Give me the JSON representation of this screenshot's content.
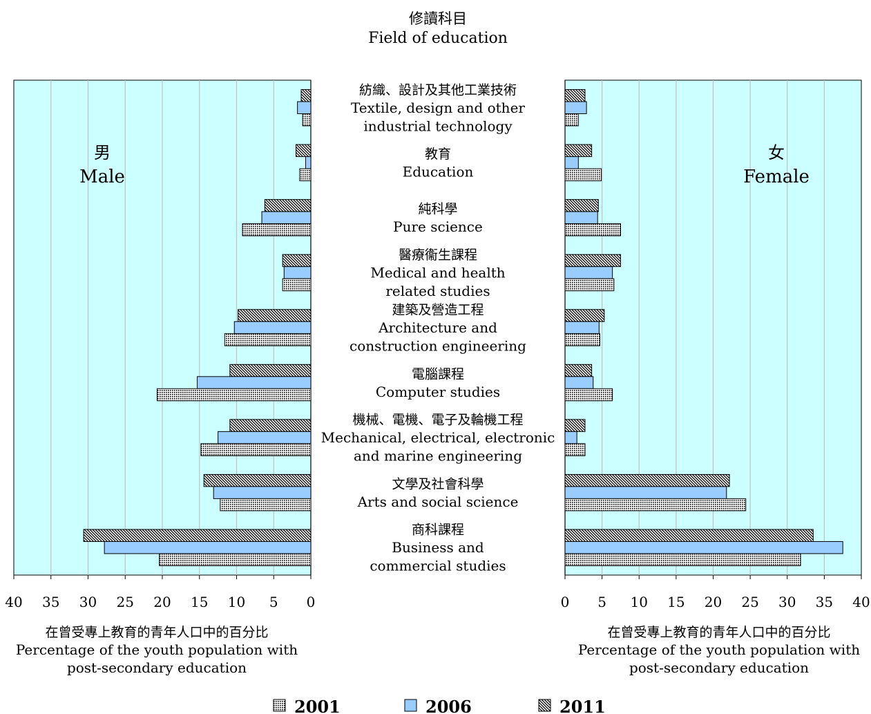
{
  "title": {
    "zh": "修讀科目",
    "en": "Field of education"
  },
  "panels": {
    "male": {
      "zh": "男",
      "en": "Male"
    },
    "female": {
      "zh": "女",
      "en": "Female"
    }
  },
  "axis": {
    "xlabel_zh": "在曾受專上教育的青年人口中的百分比",
    "xlabel_en_line1": "Percentage of the youth population with",
    "xlabel_en_line2": "post-secondary education",
    "ticks": [
      "0",
      "5",
      "10",
      "15",
      "20",
      "25",
      "30",
      "35",
      "40"
    ]
  },
  "colors": {
    "plot_bg": "#ccffff",
    "bar_2006": "#99ccff",
    "gridline": "#c0c0c0"
  },
  "chart_data": {
    "type": "bar",
    "orientation": "horizontal-butterfly",
    "xlim": [
      0,
      40
    ],
    "grid": true,
    "legend_position": "bottom",
    "series_names": [
      "2001",
      "2006",
      "2011"
    ],
    "categories": [
      {
        "zh": "紡織、設計及其他工業技術",
        "en": [
          "Textile, design and other",
          "industrial technology"
        ],
        "male": {
          "2011": 1.3,
          "2006": 1.8,
          "2001": 1.1
        },
        "female": {
          "2011": 2.7,
          "2006": 2.9,
          "2001": 1.8
        }
      },
      {
        "zh": "教育",
        "en": [
          "Education"
        ],
        "male": {
          "2011": 2.0,
          "2006": 0.7,
          "2001": 1.5
        },
        "female": {
          "2011": 3.6,
          "2006": 1.8,
          "2001": 4.9
        }
      },
      {
        "zh": "純科學",
        "en": [
          "Pure science"
        ],
        "male": {
          "2011": 6.2,
          "2006": 6.6,
          "2001": 9.2
        },
        "female": {
          "2011": 4.5,
          "2006": 4.4,
          "2001": 7.5
        }
      },
      {
        "zh": "醫療衞生課程",
        "en": [
          "Medical and health",
          "related studies"
        ],
        "male": {
          "2011": 3.8,
          "2006": 3.6,
          "2001": 3.8
        },
        "female": {
          "2011": 7.5,
          "2006": 6.4,
          "2001": 6.6
        }
      },
      {
        "zh": "建築及營造工程",
        "en": [
          "Architecture and",
          "construction engineering"
        ],
        "male": {
          "2011": 9.8,
          "2006": 10.3,
          "2001": 11.6
        },
        "female": {
          "2011": 5.3,
          "2006": 4.6,
          "2001": 4.7
        }
      },
      {
        "zh": "電腦課程",
        "en": [
          "Computer studies"
        ],
        "male": {
          "2011": 10.9,
          "2006": 15.3,
          "2001": 20.7
        },
        "female": {
          "2011": 3.6,
          "2006": 3.8,
          "2001": 6.4
        }
      },
      {
        "zh": "機械、電機、電子及輪機工程",
        "en": [
          "Mechanical, electrical, electronic",
          "and marine engineering"
        ],
        "male": {
          "2011": 10.9,
          "2006": 12.5,
          "2001": 14.8
        },
        "female": {
          "2011": 2.7,
          "2006": 1.6,
          "2001": 2.7
        }
      },
      {
        "zh": "文學及社會科學",
        "en": [
          "Arts and social science"
        ],
        "male": {
          "2011": 14.4,
          "2006": 13.1,
          "2001": 12.2
        },
        "female": {
          "2011": 22.2,
          "2006": 21.8,
          "2001": 24.4
        }
      },
      {
        "zh": "商科課程",
        "en": [
          "Business and",
          "commercial studies"
        ],
        "male": {
          "2011": 30.6,
          "2006": 27.8,
          "2001": 20.4
        },
        "female": {
          "2011": 33.5,
          "2006": 37.5,
          "2001": 31.8
        }
      }
    ]
  }
}
